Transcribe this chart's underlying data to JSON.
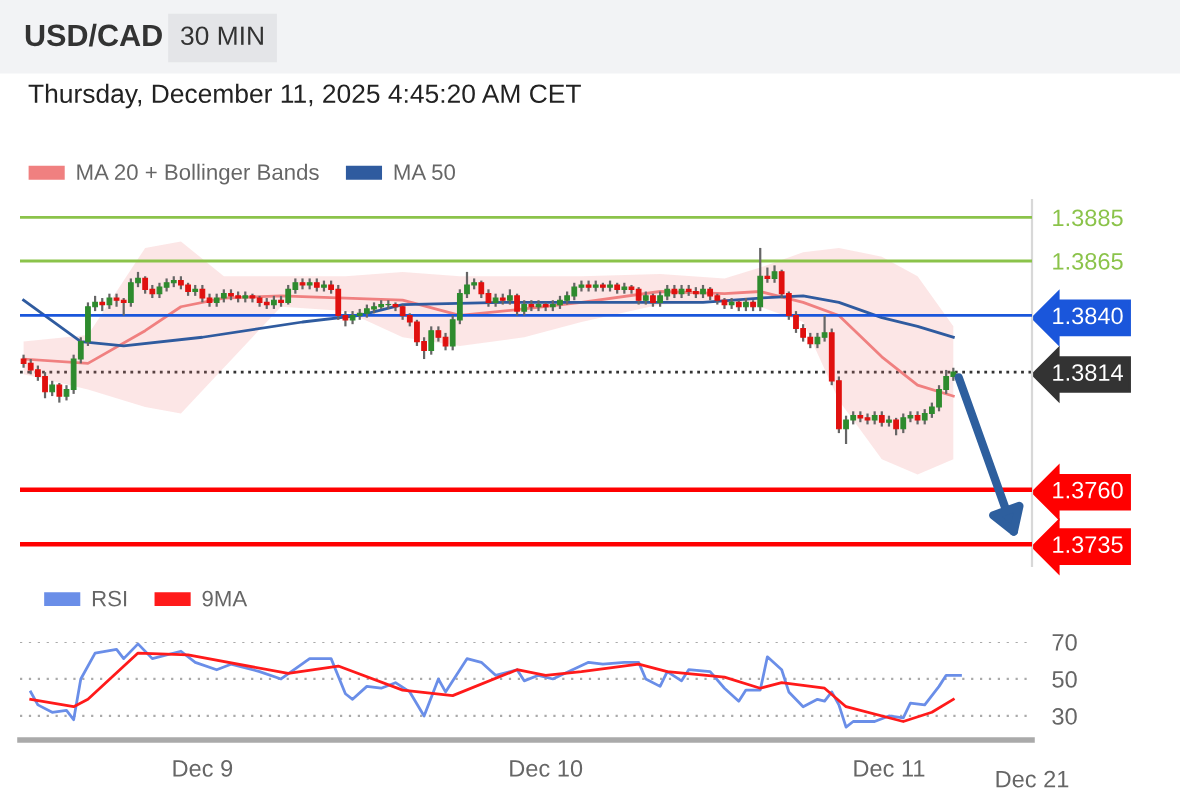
{
  "chart_data": [
    {
      "type": "candlestick",
      "title": "USD/CAD",
      "subtitle": "Thursday, December 11, 2025 4:45:20 AM CET",
      "annotations": [
        "30 MIN"
      ],
      "x": [
        "2025-12-08T11:30",
        "2025-12-08T12:00",
        "2025-12-08T12:30",
        "2025-12-08T13:00",
        "2025-12-08T13:30",
        "2025-12-08T14:00",
        "2025-12-08T14:30",
        "2025-12-08T15:00",
        "2025-12-08T15:30",
        "2025-12-08T16:00",
        "2025-12-08T16:30",
        "2025-12-08T17:00",
        "2025-12-08T17:30",
        "2025-12-08T18:00",
        "2025-12-08T18:30",
        "2025-12-08T19:00",
        "2025-12-08T19:30",
        "2025-12-08T20:00",
        "2025-12-08T20:30",
        "2025-12-08T21:00",
        "2025-12-08T21:30",
        "2025-12-08T22:00",
        "2025-12-08T22:30",
        "2025-12-08T23:00",
        "2025-12-08T23:30",
        "2025-12-09T00:00",
        "2025-12-09T00:30",
        "2025-12-09T01:00",
        "2025-12-09T01:30",
        "2025-12-09T02:00",
        "2025-12-09T02:30",
        "2025-12-09T03:00",
        "2025-12-09T03:30",
        "2025-12-09T04:00",
        "2025-12-09T04:30",
        "2025-12-09T05:00",
        "2025-12-09T05:30",
        "2025-12-09T06:00",
        "2025-12-09T06:30",
        "2025-12-09T07:00",
        "2025-12-09T07:30",
        "2025-12-09T08:00",
        "2025-12-09T08:30",
        "2025-12-09T09:00",
        "2025-12-09T09:30",
        "2025-12-09T10:00",
        "2025-12-09T10:30",
        "2025-12-09T11:00",
        "2025-12-09T11:30",
        "2025-12-09T12:00",
        "2025-12-09T12:30",
        "2025-12-09T13:00",
        "2025-12-09T13:30",
        "2025-12-09T14:00",
        "2025-12-09T14:30",
        "2025-12-09T15:00",
        "2025-12-09T15:30",
        "2025-12-09T16:00",
        "2025-12-09T16:30",
        "2025-12-09T17:00",
        "2025-12-09T17:30",
        "2025-12-09T18:00",
        "2025-12-09T18:30",
        "2025-12-09T19:00",
        "2025-12-09T19:30",
        "2025-12-09T20:00",
        "2025-12-09T20:30",
        "2025-12-09T21:00",
        "2025-12-09T21:30",
        "2025-12-09T22:00",
        "2025-12-09T22:30",
        "2025-12-09T23:00",
        "2025-12-09T23:30",
        "2025-12-10T00:00",
        "2025-12-10T00:30",
        "2025-12-10T01:00",
        "2025-12-10T01:30",
        "2025-12-10T02:00",
        "2025-12-10T02:30",
        "2025-12-10T03:00",
        "2025-12-10T03:30",
        "2025-12-10T04:00",
        "2025-12-10T04:30",
        "2025-12-10T05:00",
        "2025-12-10T05:30",
        "2025-12-10T06:00",
        "2025-12-10T06:30",
        "2025-12-10T07:00",
        "2025-12-10T07:30",
        "2025-12-10T08:00",
        "2025-12-10T08:30",
        "2025-12-10T09:00",
        "2025-12-10T09:30",
        "2025-12-10T10:00",
        "2025-12-10T10:30",
        "2025-12-10T11:00",
        "2025-12-10T11:30",
        "2025-12-10T12:00",
        "2025-12-10T12:30",
        "2025-12-10T13:00",
        "2025-12-10T13:30",
        "2025-12-10T14:00",
        "2025-12-10T14:30",
        "2025-12-10T15:00",
        "2025-12-10T15:30",
        "2025-12-10T16:00",
        "2025-12-10T16:30",
        "2025-12-10T17:00",
        "2025-12-10T17:30",
        "2025-12-10T18:00",
        "2025-12-10T18:30",
        "2025-12-10T19:00",
        "2025-12-10T19:30",
        "2025-12-10T20:00",
        "2025-12-10T20:30",
        "2025-12-10T21:00",
        "2025-12-10T21:30",
        "2025-12-10T22:00",
        "2025-12-10T22:30",
        "2025-12-10T23:00",
        "2025-12-10T23:30",
        "2025-12-11T00:00",
        "2025-12-11T00:30",
        "2025-12-11T01:00",
        "2025-12-11T01:30",
        "2025-12-11T02:00",
        "2025-12-11T02:30",
        "2025-12-11T03:00",
        "2025-12-11T03:30",
        "2025-12-11T04:00",
        "2025-12-11T04:30"
      ],
      "ohlc": [
        [
          1.382,
          1.3822,
          1.3816,
          1.3818
        ],
        [
          1.3818,
          1.382,
          1.3813,
          1.3815
        ],
        [
          1.3815,
          1.3817,
          1.381,
          1.3812
        ],
        [
          1.3812,
          1.3814,
          1.3802,
          1.3805
        ],
        [
          1.3805,
          1.381,
          1.3803,
          1.3808
        ],
        [
          1.3808,
          1.3809,
          1.38,
          1.3803
        ],
        [
          1.3803,
          1.3808,
          1.3801,
          1.3806
        ],
        [
          1.3806,
          1.3822,
          1.3804,
          1.382
        ],
        [
          1.382,
          1.383,
          1.3818,
          1.3828
        ],
        [
          1.3828,
          1.3846,
          1.3826,
          1.3844
        ],
        [
          1.3844,
          1.3849,
          1.3842,
          1.3846
        ],
        [
          1.3846,
          1.3848,
          1.3842,
          1.3845
        ],
        [
          1.3845,
          1.385,
          1.3843,
          1.3848
        ],
        [
          1.3848,
          1.385,
          1.3844,
          1.3847
        ],
        [
          1.3847,
          1.3848,
          1.384,
          1.3846
        ],
        [
          1.3846,
          1.3857,
          1.3844,
          1.3855
        ],
        [
          1.3855,
          1.386,
          1.3853,
          1.3857
        ],
        [
          1.3857,
          1.3858,
          1.385,
          1.3852
        ],
        [
          1.3852,
          1.3854,
          1.3848,
          1.385
        ],
        [
          1.385,
          1.3855,
          1.3848,
          1.3853
        ],
        [
          1.3853,
          1.3857,
          1.3851,
          1.3855
        ],
        [
          1.3855,
          1.3858,
          1.3853,
          1.3856
        ],
        [
          1.3856,
          1.3858,
          1.3852,
          1.3854
        ],
        [
          1.3854,
          1.3855,
          1.3849,
          1.3851
        ],
        [
          1.3851,
          1.3854,
          1.3849,
          1.3852
        ],
        [
          1.3852,
          1.3854,
          1.3846,
          1.3848
        ],
        [
          1.3848,
          1.385,
          1.3844,
          1.3846
        ],
        [
          1.3846,
          1.385,
          1.3844,
          1.3848
        ],
        [
          1.3848,
          1.3852,
          1.3846,
          1.385
        ],
        [
          1.385,
          1.3852,
          1.3847,
          1.3849
        ],
        [
          1.3849,
          1.3851,
          1.3846,
          1.3848
        ],
        [
          1.3848,
          1.3851,
          1.3846,
          1.3849
        ],
        [
          1.3849,
          1.385,
          1.3846,
          1.3848
        ],
        [
          1.3848,
          1.3849,
          1.3844,
          1.3846
        ],
        [
          1.3846,
          1.3848,
          1.3843,
          1.3845
        ],
        [
          1.3845,
          1.3849,
          1.3843,
          1.3847
        ],
        [
          1.3847,
          1.3849,
          1.3844,
          1.3846
        ],
        [
          1.3846,
          1.3854,
          1.3845,
          1.3852
        ],
        [
          1.3852,
          1.3857,
          1.385,
          1.3855
        ],
        [
          1.3855,
          1.3857,
          1.3852,
          1.3854
        ],
        [
          1.3854,
          1.3857,
          1.3852,
          1.3855
        ],
        [
          1.3855,
          1.3857,
          1.3851,
          1.3853
        ],
        [
          1.3853,
          1.3856,
          1.3851,
          1.3854
        ],
        [
          1.3854,
          1.3856,
          1.385,
          1.3852
        ],
        [
          1.3852,
          1.3854,
          1.3838,
          1.384
        ],
        [
          1.384,
          1.3842,
          1.3835,
          1.3838
        ],
        [
          1.3838,
          1.3842,
          1.3836,
          1.384
        ],
        [
          1.384,
          1.3843,
          1.3838,
          1.3841
        ],
        [
          1.3841,
          1.3845,
          1.3839,
          1.3843
        ],
        [
          1.3843,
          1.3846,
          1.3841,
          1.3844
        ],
        [
          1.3844,
          1.3847,
          1.3843,
          1.3845
        ],
        [
          1.3845,
          1.3847,
          1.3843,
          1.3845
        ],
        [
          1.3845,
          1.3846,
          1.3842,
          1.3844
        ],
        [
          1.3844,
          1.3845,
          1.3838,
          1.384
        ],
        [
          1.384,
          1.3841,
          1.3835,
          1.3837
        ],
        [
          1.3837,
          1.3838,
          1.3826,
          1.3828
        ],
        [
          1.3828,
          1.383,
          1.382,
          1.3824
        ],
        [
          1.3824,
          1.3835,
          1.3822,
          1.3833
        ],
        [
          1.3833,
          1.3835,
          1.3828,
          1.383
        ],
        [
          1.383,
          1.3832,
          1.3824,
          1.3826
        ],
        [
          1.3826,
          1.384,
          1.3824,
          1.3838
        ],
        [
          1.3838,
          1.3852,
          1.3836,
          1.385
        ],
        [
          1.385,
          1.386,
          1.3848,
          1.3854
        ],
        [
          1.3854,
          1.3857,
          1.3852,
          1.3855
        ],
        [
          1.3855,
          1.3856,
          1.3848,
          1.385
        ],
        [
          1.385,
          1.3852,
          1.3844,
          1.3846
        ],
        [
          1.3846,
          1.385,
          1.3844,
          1.3848
        ],
        [
          1.3848,
          1.385,
          1.3845,
          1.3847
        ],
        [
          1.3847,
          1.3852,
          1.3845,
          1.3849
        ],
        [
          1.3849,
          1.385,
          1.384,
          1.3842
        ],
        [
          1.3842,
          1.3847,
          1.384,
          1.3845
        ],
        [
          1.3845,
          1.3847,
          1.3842,
          1.3844
        ],
        [
          1.3844,
          1.3847,
          1.3842,
          1.3845
        ],
        [
          1.3845,
          1.3846,
          1.3842,
          1.3844
        ],
        [
          1.3844,
          1.3847,
          1.3842,
          1.3845
        ],
        [
          1.3845,
          1.3849,
          1.3843,
          1.3847
        ],
        [
          1.3847,
          1.3851,
          1.3845,
          1.3849
        ],
        [
          1.3849,
          1.3855,
          1.3847,
          1.3853
        ],
        [
          1.3853,
          1.3856,
          1.3851,
          1.3854
        ],
        [
          1.3854,
          1.3856,
          1.3851,
          1.3853
        ],
        [
          1.3853,
          1.3856,
          1.3851,
          1.3854
        ],
        [
          1.3854,
          1.3855,
          1.3851,
          1.3853
        ],
        [
          1.3853,
          1.3856,
          1.3851,
          1.3854
        ],
        [
          1.3854,
          1.3855,
          1.385,
          1.3852
        ],
        [
          1.3852,
          1.3855,
          1.385,
          1.3853
        ],
        [
          1.3853,
          1.3854,
          1.385,
          1.3852
        ],
        [
          1.3852,
          1.3853,
          1.3845,
          1.3847
        ],
        [
          1.3847,
          1.3851,
          1.3845,
          1.3849
        ],
        [
          1.3849,
          1.385,
          1.3844,
          1.3846
        ],
        [
          1.3846,
          1.3851,
          1.3844,
          1.3849
        ],
        [
          1.3849,
          1.3854,
          1.3847,
          1.3852
        ],
        [
          1.3852,
          1.3854,
          1.3848,
          1.385
        ],
        [
          1.385,
          1.3854,
          1.3848,
          1.3852
        ],
        [
          1.3852,
          1.3854,
          1.3849,
          1.3851
        ],
        [
          1.3851,
          1.3853,
          1.3848,
          1.385
        ],
        [
          1.385,
          1.3854,
          1.3848,
          1.3852
        ],
        [
          1.3852,
          1.3853,
          1.3847,
          1.3849
        ],
        [
          1.3849,
          1.385,
          1.3845,
          1.3847
        ],
        [
          1.3847,
          1.3848,
          1.3843,
          1.3845
        ],
        [
          1.3845,
          1.3848,
          1.3843,
          1.3846
        ],
        [
          1.3846,
          1.3847,
          1.3842,
          1.3844
        ],
        [
          1.3844,
          1.3848,
          1.3842,
          1.3846
        ],
        [
          1.3846,
          1.3847,
          1.3842,
          1.3844
        ],
        [
          1.3844,
          1.3871,
          1.3842,
          1.3858
        ],
        [
          1.3858,
          1.3862,
          1.3855,
          1.3857
        ],
        [
          1.3857,
          1.3863,
          1.3855,
          1.386
        ],
        [
          1.386,
          1.3861,
          1.3848,
          1.385
        ],
        [
          1.385,
          1.3851,
          1.3838,
          1.384
        ],
        [
          1.384,
          1.3842,
          1.3832,
          1.3834
        ],
        [
          1.3834,
          1.3836,
          1.3828,
          1.383
        ],
        [
          1.383,
          1.3832,
          1.3825,
          1.3827
        ],
        [
          1.3827,
          1.3832,
          1.3825,
          1.383
        ],
        [
          1.383,
          1.384,
          1.3828,
          1.3832
        ],
        [
          1.3832,
          1.3834,
          1.3808,
          1.381
        ],
        [
          1.381,
          1.3812,
          1.3786,
          1.3788
        ],
        [
          1.3788,
          1.3794,
          1.3781,
          1.3792
        ],
        [
          1.3792,
          1.3796,
          1.379,
          1.3794
        ],
        [
          1.3794,
          1.3796,
          1.3791,
          1.3793
        ],
        [
          1.3793,
          1.3795,
          1.379,
          1.3792
        ],
        [
          1.3792,
          1.3796,
          1.379,
          1.3794
        ],
        [
          1.3794,
          1.3796,
          1.3789,
          1.3791
        ],
        [
          1.3791,
          1.3794,
          1.3789,
          1.3792
        ],
        [
          1.3792,
          1.3793,
          1.3785,
          1.3788
        ],
        [
          1.3788,
          1.3795,
          1.3786,
          1.3793
        ],
        [
          1.3793,
          1.3796,
          1.3791,
          1.3794
        ],
        [
          1.3794,
          1.3796,
          1.379,
          1.3792
        ],
        [
          1.3792,
          1.3797,
          1.379,
          1.3795
        ],
        [
          1.3795,
          1.38,
          1.3793,
          1.3798
        ],
        [
          1.3798,
          1.3808,
          1.3796,
          1.3806
        ],
        [
          1.3806,
          1.3815,
          1.3804,
          1.3812
        ],
        [
          1.3812,
          1.3816,
          1.381,
          1.3814
        ]
      ],
      "series": [
        {
          "name": "MA 20 + Bollinger Bands",
          "type": "line",
          "color": "#f08080",
          "x": [
            "2025-12-08T11:30",
            "2025-12-08T16:00",
            "2025-12-08T20:00",
            "2025-12-08T22:30",
            "2025-12-09T01:30",
            "2025-12-09T05:30",
            "2025-12-09T10:00",
            "2025-12-09T14:00",
            "2025-12-09T18:00",
            "2025-12-09T22:30",
            "2025-12-10T02:30",
            "2025-12-10T08:00",
            "2025-12-10T12:30",
            "2025-12-10T15:00",
            "2025-12-10T18:00",
            "2025-12-10T20:30",
            "2025-12-10T23:30",
            "2025-12-11T02:00",
            "2025-12-11T04:30"
          ],
          "values": [
            1.382,
            1.3818,
            1.3833,
            1.3844,
            1.3848,
            1.3849,
            1.3848,
            1.3847,
            1.384,
            1.3843,
            1.3846,
            1.3851,
            1.385,
            1.3851,
            1.3846,
            1.384,
            1.3821,
            1.3808,
            1.3803
          ],
          "upper": [
            1.3828,
            1.3831,
            1.3871,
            1.3874,
            1.3858,
            1.3858,
            1.3858,
            1.386,
            1.3858,
            1.3858,
            1.3858,
            1.3859,
            1.3857,
            1.3862,
            1.3869,
            1.3871,
            1.3867,
            1.3858,
            1.3835
          ],
          "lower": [
            1.3813,
            1.3806,
            1.3798,
            1.3795,
            1.3816,
            1.3844,
            1.3842,
            1.383,
            1.3826,
            1.383,
            1.3837,
            1.3845,
            1.3846,
            1.3844,
            1.3837,
            1.3801,
            1.3774,
            1.3767,
            1.3774
          ]
        },
        {
          "name": "MA 50",
          "type": "line",
          "color": "#2f5b9f",
          "x": [
            "2025-12-08T11:30",
            "2025-12-08T15:30",
            "2025-12-08T18:30",
            "2025-12-09T00:00",
            "2025-12-09T07:00",
            "2025-12-09T11:00",
            "2025-12-09T14:00",
            "2025-12-09T21:00",
            "2025-12-10T04:00",
            "2025-12-10T11:00",
            "2025-12-10T15:00",
            "2025-12-10T18:00",
            "2025-12-10T20:30",
            "2025-12-10T23:30",
            "2025-12-11T02:00",
            "2025-12-11T04:30"
          ],
          "values": [
            1.3847,
            1.3828,
            1.3826,
            1.383,
            1.3837,
            1.384,
            1.3845,
            1.3846,
            1.3846,
            1.3846,
            1.3848,
            1.3849,
            1.3846,
            1.3839,
            1.3835,
            1.383
          ]
        }
      ],
      "ref_lines": [
        {
          "axis": "y",
          "value": 1.3885,
          "color": "#8bc34a"
        },
        {
          "axis": "y",
          "value": 1.3865,
          "color": "#8bc34a"
        },
        {
          "axis": "y",
          "value": 1.384,
          "color": "#1a56db"
        },
        {
          "axis": "y",
          "value": 1.3814,
          "color": "#333333",
          "line_style": "dotted"
        },
        {
          "axis": "y",
          "value": 1.376,
          "color": "#ff0000"
        },
        {
          "axis": "y",
          "value": 1.3735,
          "color": "#ff0000"
        }
      ],
      "yticks": [
        {
          "value": 1.3885,
          "label": "1.3885"
        },
        {
          "value": 1.3865,
          "label": "1.3865"
        },
        {
          "value": 1.384,
          "label": "1.3840"
        },
        {
          "value": 1.3814,
          "label": "1.3814"
        },
        {
          "value": 1.376,
          "label": "1.3760"
        },
        {
          "value": 1.3735,
          "label": "1.3735"
        }
      ],
      "xlim": [
        "2025-12-08T11:15",
        "2025-12-11T10:00"
      ],
      "ylim": [
        1.3725,
        1.3893
      ],
      "tick_labels": "y",
      "legend": "top left"
    },
    {
      "type": "line",
      "series": [
        {
          "name": "RSI",
          "color": "#6a8ee8",
          "x": [
            "2025-12-08T12:00",
            "2025-12-08T12:30",
            "2025-12-08T13:30",
            "2025-12-08T14:30",
            "2025-12-08T15:00",
            "2025-12-08T15:30",
            "2025-12-08T16:30",
            "2025-12-08T18:00",
            "2025-12-08T18:30",
            "2025-12-08T19:30",
            "2025-12-08T20:30",
            "2025-12-08T22:30",
            "2025-12-08T23:30",
            "2025-12-09T01:00",
            "2025-12-09T02:00",
            "2025-12-09T04:00",
            "2025-12-09T05:30",
            "2025-12-09T07:30",
            "2025-12-09T09:00",
            "2025-12-09T10:00",
            "2025-12-09T10:30",
            "2025-12-09T11:30",
            "2025-12-09T12:30",
            "2025-12-09T13:30",
            "2025-12-09T14:30",
            "2025-12-09T15:30",
            "2025-12-09T16:30",
            "2025-12-09T17:00",
            "2025-12-09T18:30",
            "2025-12-09T19:30",
            "2025-12-09T20:30",
            "2025-12-09T22:00",
            "2025-12-09T22:30",
            "2025-12-09T23:30",
            "2025-12-10T00:30",
            "2025-12-10T03:00",
            "2025-12-10T04:00",
            "2025-12-10T05:30",
            "2025-12-10T06:30",
            "2025-12-10T07:00",
            "2025-12-10T08:00",
            "2025-12-10T08:30",
            "2025-12-10T09:30",
            "2025-12-10T10:00",
            "2025-12-10T11:30",
            "2025-12-10T12:30",
            "2025-12-10T13:30",
            "2025-12-10T14:00",
            "2025-12-10T15:00",
            "2025-12-10T15:30",
            "2025-12-10T16:30",
            "2025-12-10T17:00",
            "2025-12-10T18:00",
            "2025-12-10T19:00",
            "2025-12-10T19:30",
            "2025-12-10T20:00",
            "2025-12-10T20:30",
            "2025-12-10T21:00",
            "2025-12-10T21:30",
            "2025-12-10T23:00",
            "2025-12-11T00:00",
            "2025-12-11T01:00",
            "2025-12-11T01:30",
            "2025-12-11T02:30",
            "2025-12-11T03:30",
            "2025-12-11T04:00",
            "2025-12-11T05:00"
          ],
          "values": [
            43,
            36,
            32,
            33,
            28,
            50,
            64,
            66,
            61,
            69,
            61,
            65,
            59,
            55,
            58,
            54,
            50,
            61,
            61,
            42,
            39,
            46,
            45,
            48,
            43,
            30,
            50,
            43,
            61,
            59,
            52,
            55,
            49,
            52,
            50,
            59,
            58,
            59,
            59,
            50,
            46,
            54,
            49,
            55,
            54,
            45,
            38,
            44,
            44,
            62,
            55,
            43,
            35,
            39,
            38,
            43,
            36,
            24,
            27,
            27,
            30,
            29,
            37,
            36,
            46,
            52,
            52
          ]
        },
        {
          "name": "9MA",
          "color": "#ff1a1a",
          "x": [
            "2025-12-08T12:00",
            "2025-12-08T15:00",
            "2025-12-08T16:00",
            "2025-12-08T19:30",
            "2025-12-08T23:00",
            "2025-12-09T06:00",
            "2025-12-09T09:30",
            "2025-12-09T14:00",
            "2025-12-09T17:30",
            "2025-12-09T22:00",
            "2025-12-10T00:00",
            "2025-12-10T02:30",
            "2025-12-10T06:30",
            "2025-12-10T08:30",
            "2025-12-10T12:30",
            "2025-12-10T15:00",
            "2025-12-10T16:30",
            "2025-12-10T19:30",
            "2025-12-10T21:00",
            "2025-12-11T01:00",
            "2025-12-11T03:00",
            "2025-12-11T04:30"
          ],
          "values": [
            39,
            35,
            39,
            64,
            63,
            53,
            57,
            44,
            41,
            55,
            52,
            54,
            58,
            54,
            51,
            45,
            48,
            45,
            35,
            27,
            32,
            39
          ]
        }
      ],
      "xlim": [
        "2025-12-08T11:15",
        "2025-12-11T10:00"
      ],
      "xticks": [
        {
          "value": "2025-12-09",
          "label": "Dec 9"
        },
        {
          "value": "2025-12-10",
          "label": "Dec 10"
        },
        {
          "value": "2025-12-11",
          "label": "Dec 11"
        }
      ],
      "annotations": [
        "Dec 21"
      ],
      "ylim": [
        17,
        70
      ],
      "yticks": [
        30,
        50,
        70
      ],
      "grid": "y",
      "legend": "top left"
    }
  ]
}
